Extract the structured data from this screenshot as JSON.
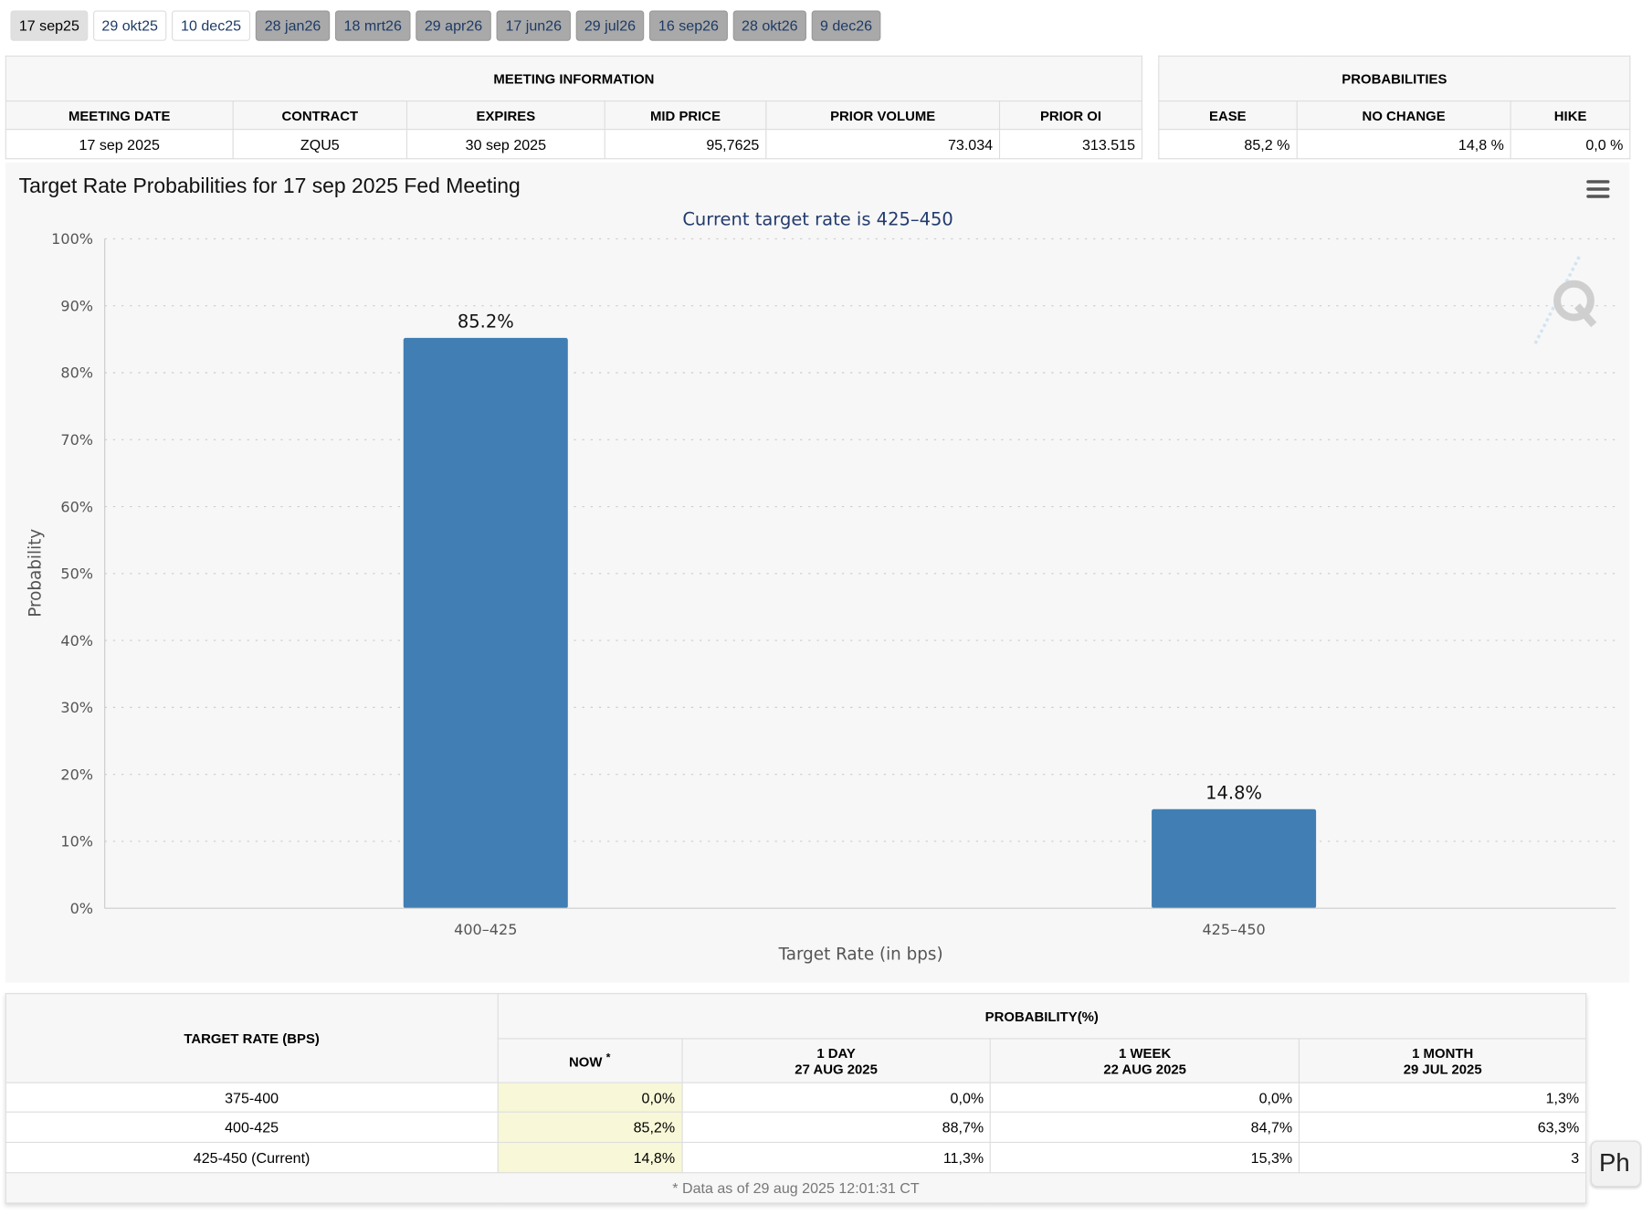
{
  "tabs": [
    {
      "label": "17 sep25",
      "state": "active"
    },
    {
      "label": "29 okt25",
      "state": "light"
    },
    {
      "label": "10 dec25",
      "state": "light"
    },
    {
      "label": "28 jan26",
      "state": "dark"
    },
    {
      "label": "18 mrt26",
      "state": "dark"
    },
    {
      "label": "29 apr26",
      "state": "dark"
    },
    {
      "label": "17 jun26",
      "state": "dark"
    },
    {
      "label": "29 jul26",
      "state": "dark"
    },
    {
      "label": "16 sep26",
      "state": "dark"
    },
    {
      "label": "28 okt26",
      "state": "dark"
    },
    {
      "label": "9 dec26",
      "state": "dark"
    }
  ],
  "meeting_info": {
    "title": "MEETING INFORMATION",
    "headers": [
      "MEETING DATE",
      "CONTRACT",
      "EXPIRES",
      "MID PRICE",
      "PRIOR VOLUME",
      "PRIOR OI"
    ],
    "row": [
      "17 sep 2025",
      "ZQU5",
      "30 sep 2025",
      "95,7625",
      "73.034",
      "313.515"
    ]
  },
  "probabilities": {
    "title": "PROBABILITIES",
    "headers": [
      "EASE",
      "NO CHANGE",
      "HIKE"
    ],
    "row": [
      "85,2 %",
      "14,8 %",
      "0,0 %"
    ]
  },
  "chart_data": {
    "type": "bar",
    "title": "Target Rate Probabilities for 17 sep 2025 Fed Meeting",
    "subtitle": "Current target rate is 425–450",
    "xlabel": "Target Rate (in bps)",
    "ylabel": "Probability",
    "categories": [
      "400–425",
      "425–450"
    ],
    "values": [
      85.2,
      14.8
    ],
    "data_labels": [
      "85.2%",
      "14.8%"
    ],
    "ylim": [
      0,
      100
    ],
    "yticks": [
      "0%",
      "10%",
      "20%",
      "30%",
      "40%",
      "50%",
      "60%",
      "70%",
      "80%",
      "90%",
      "100%"
    ],
    "grid": true,
    "bar_color": "#407eb4",
    "menu_icon": "hamburger-menu-icon",
    "watermark": "Q"
  },
  "rates_table": {
    "rate_header": "TARGET RATE (BPS)",
    "prob_header": "PROBABILITY(%)",
    "cols": [
      {
        "line1": "NOW",
        "line2": "",
        "sup": "*"
      },
      {
        "line1": "1 DAY",
        "line2": "27 AUG 2025"
      },
      {
        "line1": "1 WEEK",
        "line2": "22 AUG 2025"
      },
      {
        "line1": "1 MONTH",
        "line2": "29 JUL 2025"
      }
    ],
    "rows": [
      {
        "rate": "375-400",
        "now": "0,0%",
        "day": "0,0%",
        "week": "0,0%",
        "month": "1,3%"
      },
      {
        "rate": "400-425",
        "now": "85,2%",
        "day": "88,7%",
        "week": "84,7%",
        "month": "63,3%"
      },
      {
        "rate": "425-450 (Current)",
        "now": "14,8%",
        "day": "11,3%",
        "week": "15,3%",
        "month": "3"
      }
    ],
    "footnote": "* Data as of 29 aug 2025 12:01:31 CT",
    "now_highlight": "#f8f8d8"
  },
  "tooltip": {
    "text": "Ph"
  }
}
